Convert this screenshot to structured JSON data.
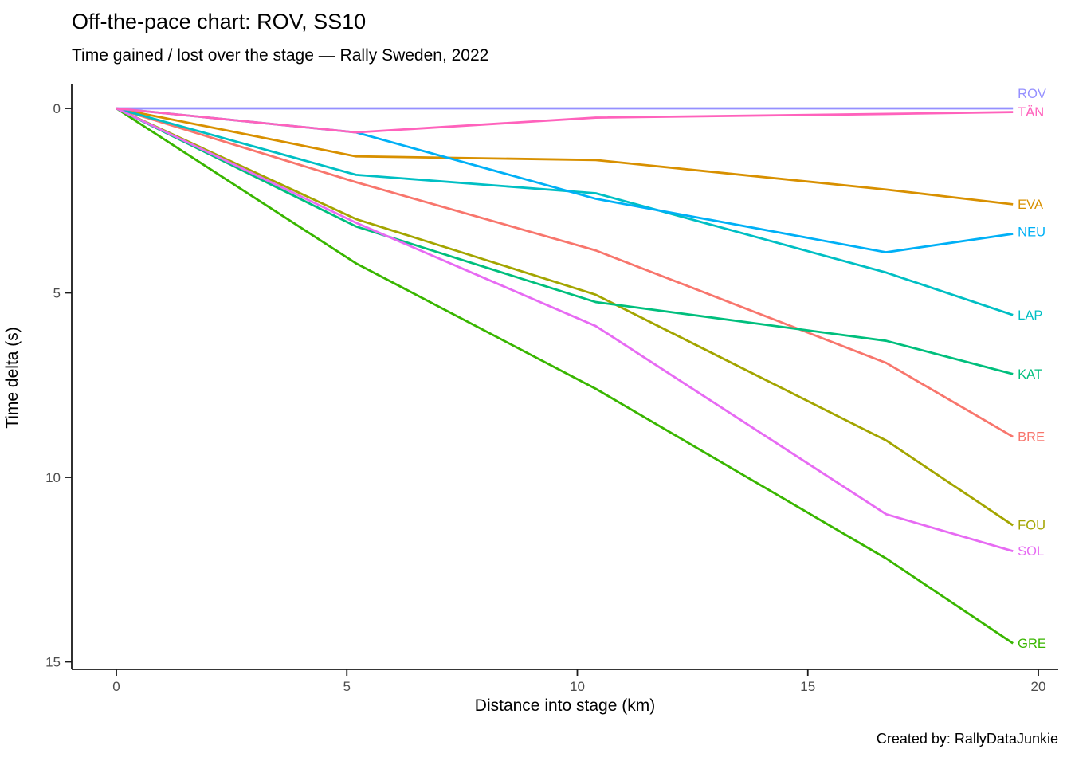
{
  "figure": {
    "title": "Off-the-pace chart: ROV, SS10",
    "subtitle": "Time gained / lost over the stage — Rally Sweden, 2022",
    "caption": "Created by: RallyDataJunkie"
  },
  "chart_data": {
    "type": "line",
    "title": "Off-the-pace chart: ROV, SS10",
    "subtitle": "Time gained / lost over the stage — Rally Sweden, 2022",
    "caption": "Created by: RallyDataJunkie",
    "xlabel": "Distance into stage (km)",
    "ylabel": "Time delta (s)",
    "x_ticks": [
      0,
      5,
      10,
      15,
      20
    ],
    "y_ticks": [
      0,
      5,
      10,
      15
    ],
    "xlim": [
      -0.97,
      20.4
    ],
    "ylim": [
      15.2,
      -0.67
    ],
    "y_axis_inverted": true,
    "grid": false,
    "legend": "right-end direct labels",
    "x": [
      0,
      5.2,
      10.4,
      16.7,
      19.45
    ],
    "series": [
      {
        "name": "BRE",
        "color": "#F8766D",
        "seconds_lost": [
          0,
          2.0,
          3.85,
          6.9,
          8.9
        ],
        "label_y": 8.9
      },
      {
        "name": "EVA",
        "color": "#D89000",
        "seconds_lost": [
          0,
          1.3,
          1.4,
          2.2,
          2.6
        ],
        "label_y": 2.6
      },
      {
        "name": "FOU",
        "color": "#A3A500",
        "seconds_lost": [
          0,
          3.0,
          5.05,
          9.0,
          11.3
        ],
        "label_y": 11.3
      },
      {
        "name": "GRE",
        "color": "#39B600",
        "seconds_lost": [
          0,
          4.2,
          7.6,
          12.2,
          14.5
        ],
        "label_y": 14.5
      },
      {
        "name": "KAT",
        "color": "#00BF7D",
        "seconds_lost": [
          0,
          3.2,
          5.25,
          6.3,
          7.2
        ],
        "label_y": 7.2
      },
      {
        "name": "LAP",
        "color": "#00BFC4",
        "seconds_lost": [
          0,
          1.8,
          2.3,
          4.45,
          5.6
        ],
        "label_y": 5.6
      },
      {
        "name": "NEU",
        "color": "#00B0F6",
        "seconds_lost": [
          0,
          0.65,
          2.45,
          3.9,
          3.4
        ],
        "label_y": 3.35
      },
      {
        "name": "ROV",
        "color": "#9590FF",
        "seconds_lost": [
          0,
          0,
          0,
          0,
          0
        ],
        "label_y": -0.4
      },
      {
        "name": "SOL",
        "color": "#E76BF3",
        "seconds_lost": [
          0,
          3.1,
          5.9,
          11.0,
          12.0
        ],
        "label_y": 12.0
      },
      {
        "name": "TÄN",
        "color": "#FF62BC",
        "seconds_lost": [
          0,
          0.65,
          0.25,
          0.15,
          0.1
        ],
        "label_y": 0.1
      }
    ]
  }
}
